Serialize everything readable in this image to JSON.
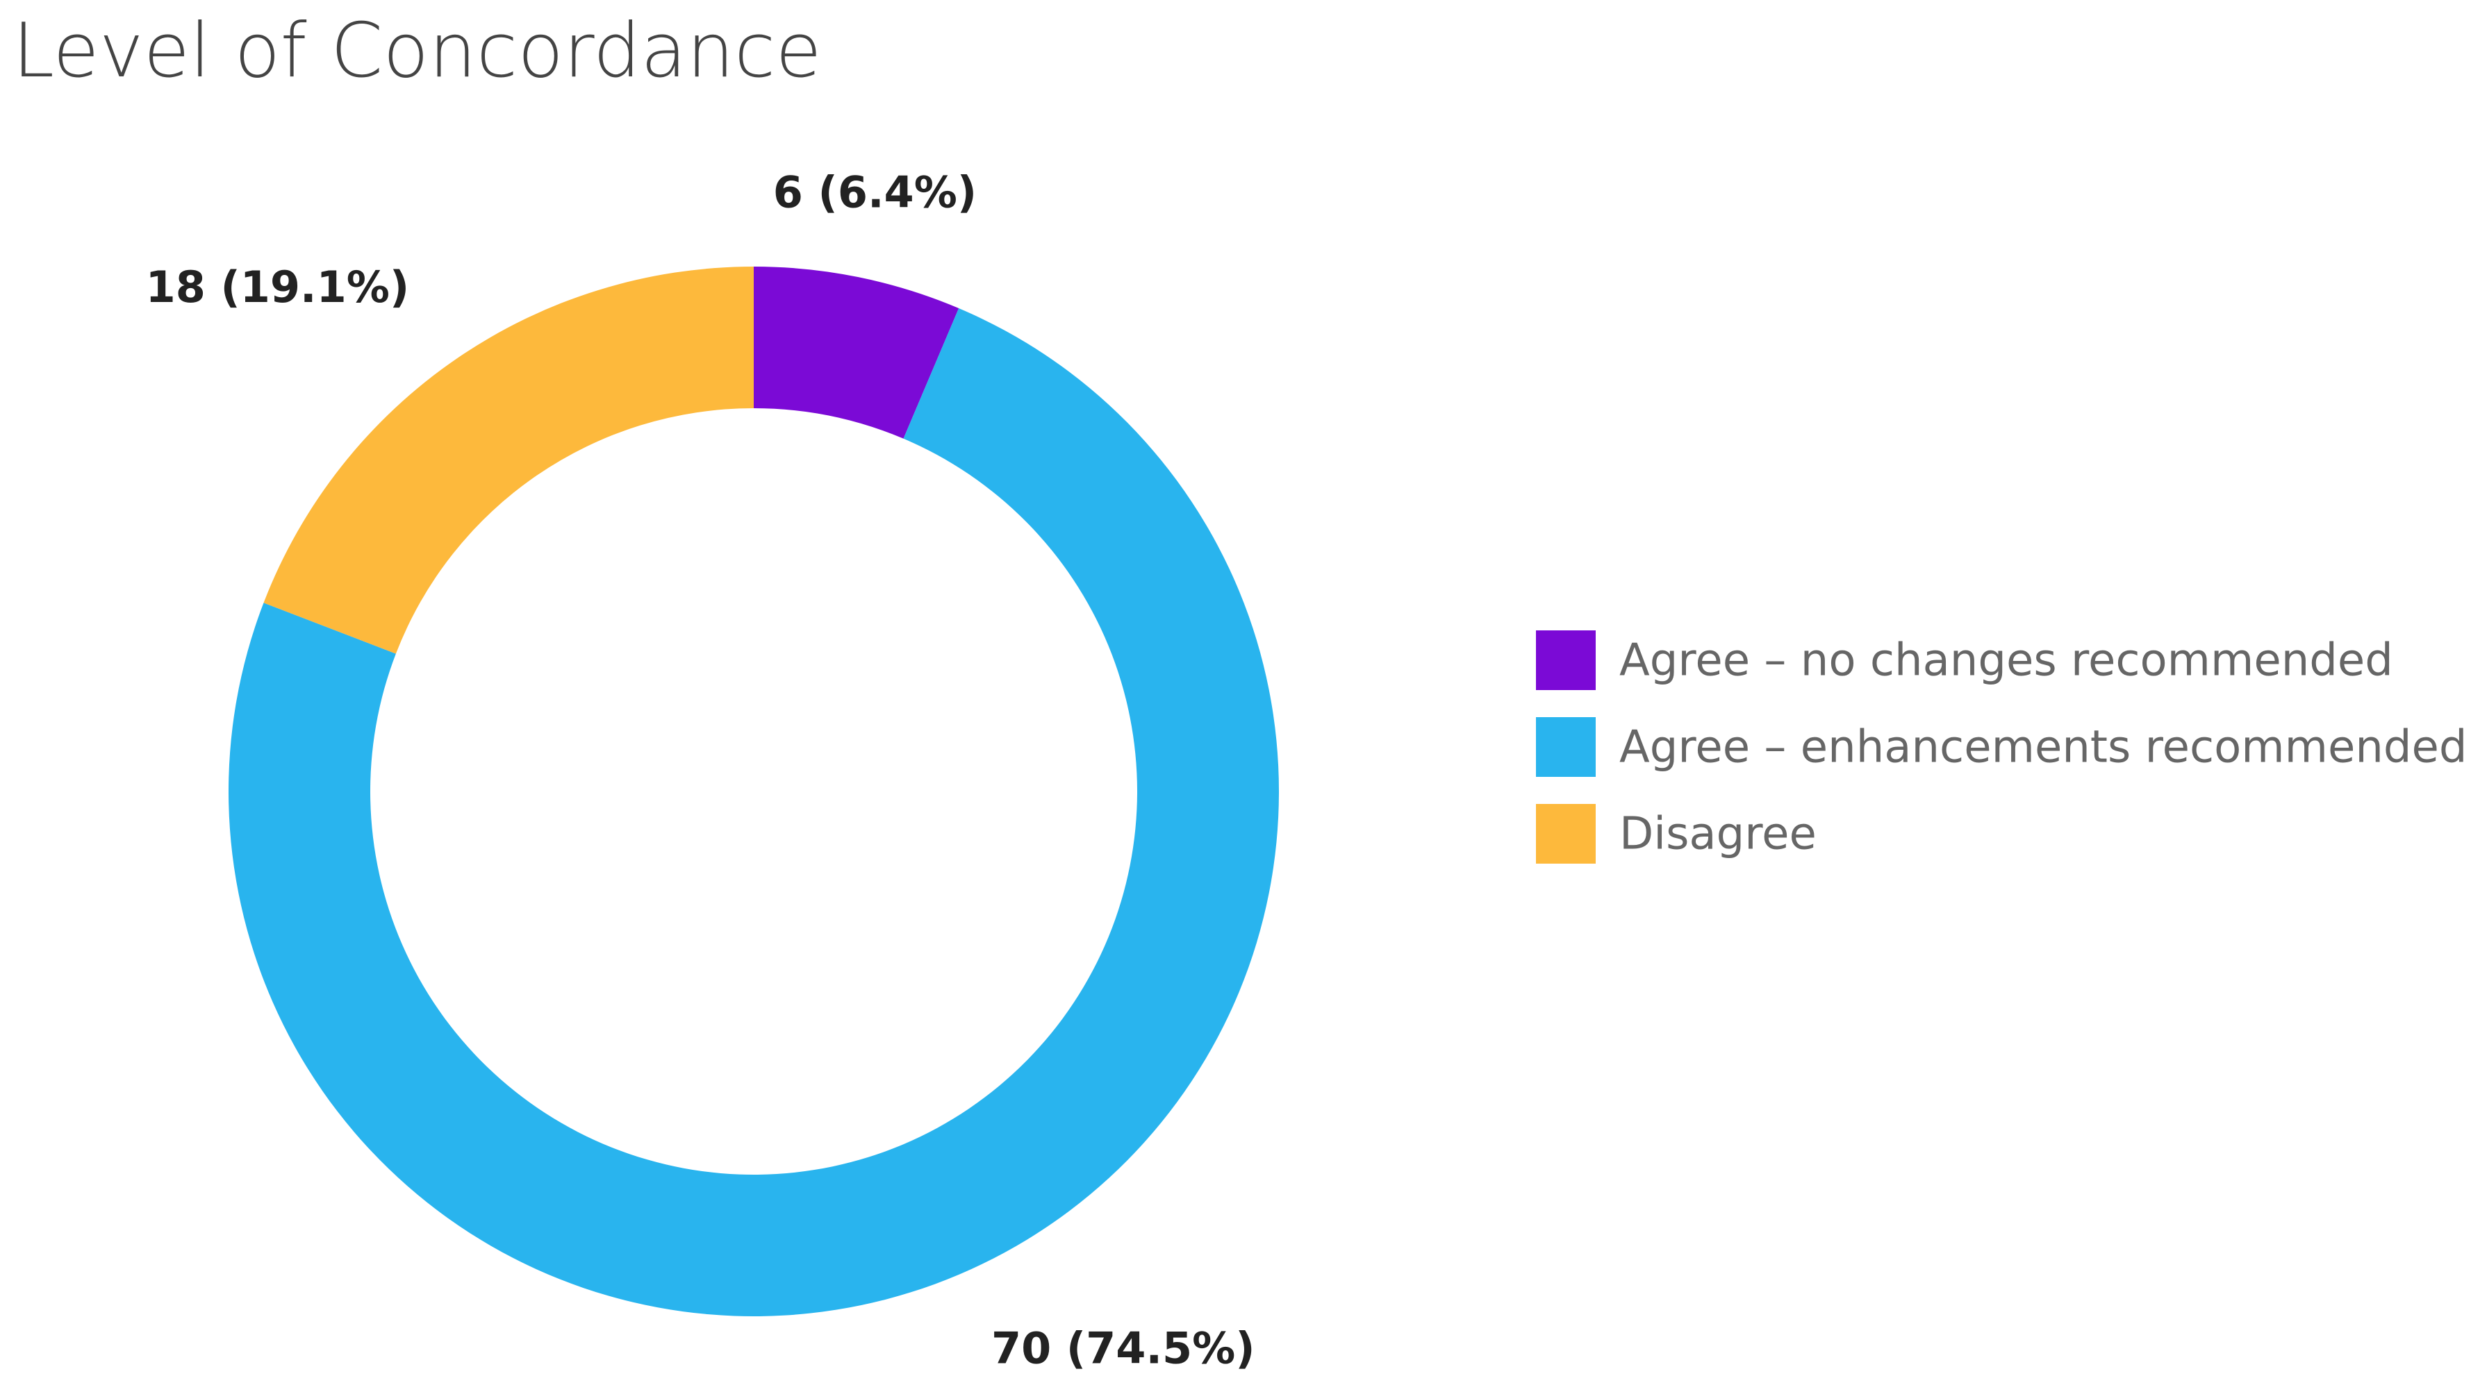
{
  "chart_data": {
    "type": "donut",
    "title": "Level of Concordance",
    "categories": [
      "Agree – no changes recommended",
      "Agree – enhancements recommended",
      "Disagree"
    ],
    "values": [
      6,
      70,
      18
    ],
    "value_labels": [
      "6 (6.4%)",
      "70 (74.5%)",
      "18 (19.1%)"
    ],
    "colors": [
      "#7b0ad6",
      "#29b4ee",
      "#fdb93c"
    ],
    "legend": "right"
  }
}
